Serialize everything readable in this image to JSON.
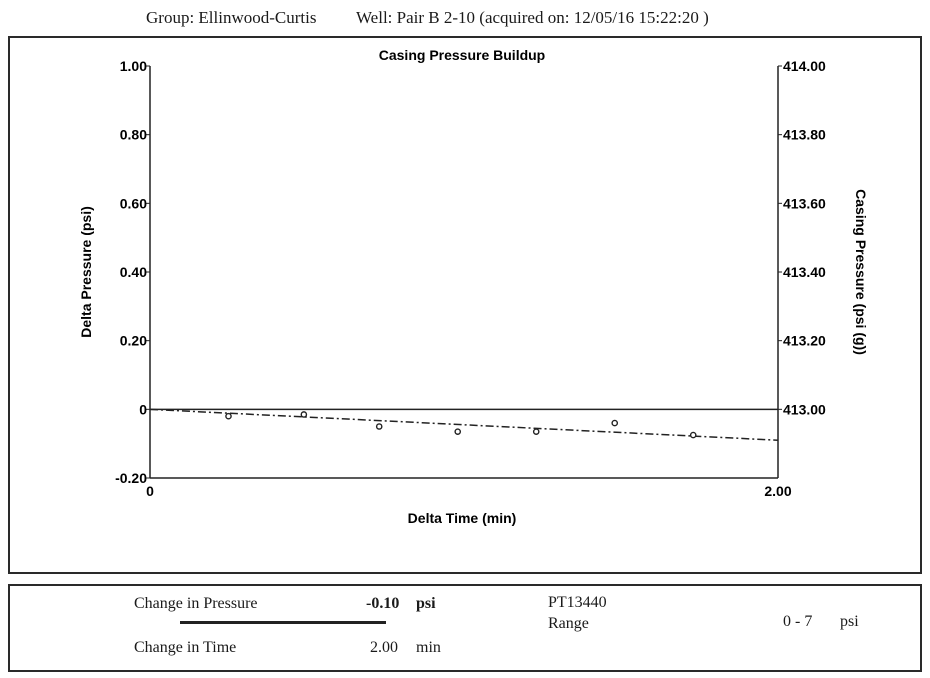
{
  "header": {
    "group": "Group: Ellinwood-Curtis",
    "well": "Well: Pair B 2-10 (acquired on: 12/05/16 15:22:20 )"
  },
  "chart_data": {
    "type": "line",
    "title": "Casing Pressure Buildup",
    "xlabel": "Delta Time (min)",
    "ylabel": "Delta Pressure (psi)",
    "y2label": "Casing Pressure (psi (g))",
    "xlim": [
      0,
      2.0
    ],
    "ylim": [
      -0.2,
      1.0
    ],
    "y2lim": [
      412.8,
      414.0
    ],
    "x_ticks": [
      "0",
      "2.00"
    ],
    "y_ticks": [
      {
        "v": 1.0,
        "label": "1.00"
      },
      {
        "v": 0.8,
        "label": "0.80"
      },
      {
        "v": 0.6,
        "label": "0.60"
      },
      {
        "v": 0.4,
        "label": "0.40"
      },
      {
        "v": 0.2,
        "label": "0.20"
      },
      {
        "v": 0.0,
        "label": "0"
      },
      {
        "v": -0.2,
        "label": "-0.20"
      }
    ],
    "y2_ticks": [
      {
        "v": 414.0,
        "label": "414.00"
      },
      {
        "v": 413.8,
        "label": "413.80"
      },
      {
        "v": 413.6,
        "label": "413.60"
      },
      {
        "v": 413.4,
        "label": "413.40"
      },
      {
        "v": 413.2,
        "label": "413.20"
      },
      {
        "v": 413.0,
        "label": "413.00"
      }
    ],
    "series": [
      {
        "points": [
          {
            "x": 0.25,
            "y": -0.02
          },
          {
            "x": 0.49,
            "y": -0.015
          },
          {
            "x": 0.73,
            "y": -0.05
          },
          {
            "x": 0.98,
            "y": -0.065
          },
          {
            "x": 1.23,
            "y": -0.065
          },
          {
            "x": 1.48,
            "y": -0.04
          },
          {
            "x": 1.73,
            "y": -0.075
          }
        ],
        "trend": [
          {
            "x": 0,
            "y": 0
          },
          {
            "x": 2.0,
            "y": -0.09
          }
        ],
        "baseline": 0
      }
    ]
  },
  "footer": {
    "change_pressure_label": "Change in Pressure",
    "change_pressure_value": "-0.10",
    "change_pressure_unit": "psi",
    "change_time_label": "Change in Time",
    "change_time_value": "2.00",
    "change_time_unit": "min",
    "sensor_id": "PT13440",
    "range_label": "Range",
    "range_value": "0 - 7",
    "range_unit": "psi"
  }
}
